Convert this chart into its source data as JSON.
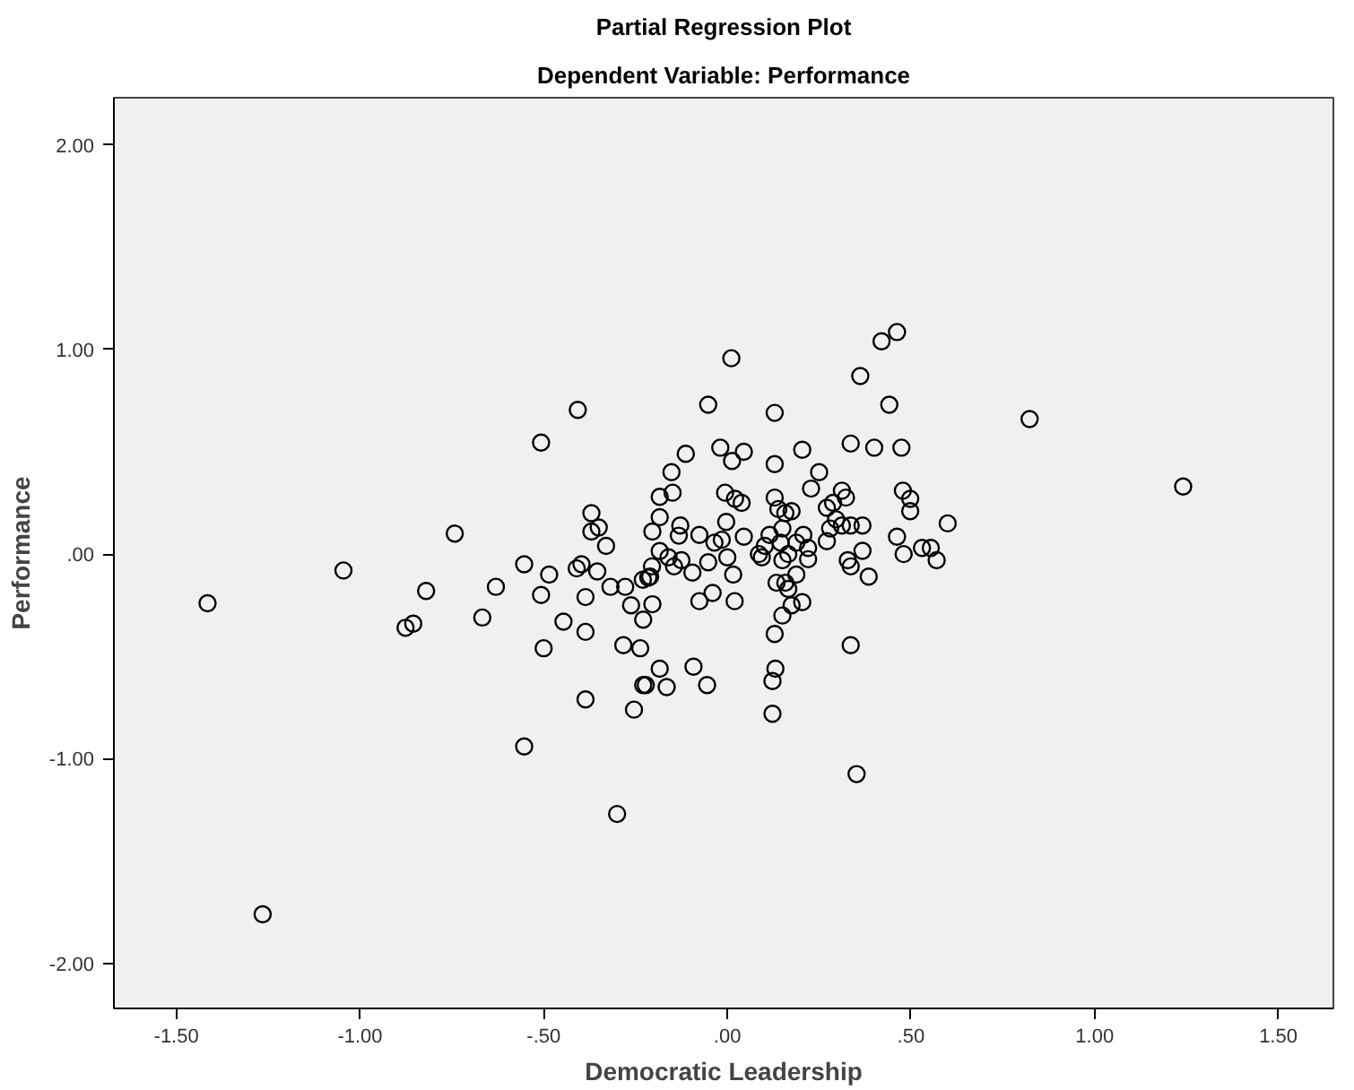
{
  "chart_data": {
    "type": "scatter",
    "title": "Partial Regression Plot",
    "subtitle": "Dependent Variable: Performance",
    "xlabel": "Democratic Leadership",
    "ylabel": "Performance",
    "marker": "circle",
    "grid": false,
    "xlim": [
      -1.67,
      1.65
    ],
    "ylim": [
      -2.22,
      2.23
    ],
    "xticks": [
      {
        "value": -1.5,
        "label": "-1.50"
      },
      {
        "value": -1.0,
        "label": "-1.00"
      },
      {
        "value": -0.5,
        "label": "-.50"
      },
      {
        "value": 0,
        "label": ".00"
      },
      {
        "value": 0.5,
        "label": ".50"
      },
      {
        "value": 1.0,
        "label": "1.00"
      },
      {
        "value": 1.5,
        "label": "1.50"
      }
    ],
    "yticks": [
      {
        "value": 2,
        "label": "2.00"
      },
      {
        "value": 1,
        "label": "1.00"
      },
      {
        "value": 0,
        "label": ".00"
      },
      {
        "value": -1,
        "label": "-1.00"
      },
      {
        "value": -2,
        "label": "-2.00"
      }
    ],
    "series": [
      {
        "color": "#000000",
        "x": [
          -1.415,
          -1.265,
          -1.045,
          -0.82,
          -0.876,
          -0.855,
          -0.667,
          -0.63,
          -0.553,
          -0.507,
          -0.485,
          -0.5,
          -0.446,
          -0.41,
          -0.397,
          -0.354,
          -0.386,
          -0.386,
          -0.386,
          -0.553,
          -0.3,
          -0.254,
          -0.283,
          -0.237,
          -0.229,
          -0.318,
          -0.278,
          -0.262,
          -0.229,
          -0.742,
          -0.507,
          -0.407,
          -0.37,
          -0.37,
          -0.35,
          -0.33,
          -0.23,
          -0.215,
          -0.21,
          -0.204,
          -0.205,
          -0.184,
          -0.184,
          -0.149,
          -0.152,
          -0.113,
          -0.184,
          -0.204,
          -0.128,
          -0.132,
          -0.076,
          -0.16,
          -0.145,
          -0.125,
          -0.095,
          -0.052,
          -0.035,
          -0.015,
          -0.076,
          -0.04,
          0.02,
          0.016,
          0.0,
          -0.003,
          -0.006,
          0.021,
          0.039,
          0.013,
          -0.019,
          0.045,
          -0.052,
          0.011,
          0.045,
          0.086,
          0.102,
          0.115,
          0.094,
          0.129,
          0.129,
          0.129,
          0.139,
          0.158,
          0.175,
          0.15,
          0.145,
          0.188,
          0.166,
          0.15,
          0.207,
          0.22,
          0.22,
          0.204,
          0.228,
          0.25,
          0.134,
          0.158,
          0.188,
          0.166,
          0.175,
          0.15,
          0.204,
          0.129,
          0.271,
          0.288,
          0.312,
          0.323,
          0.296,
          0.312,
          0.336,
          0.368,
          0.28,
          0.271,
          0.328,
          0.336,
          0.368,
          0.385,
          0.336,
          0.4,
          0.474,
          0.441,
          0.362,
          0.42,
          0.462,
          0.478,
          0.498,
          0.498,
          0.462,
          0.48,
          0.53,
          0.336,
          0.823,
          1.241,
          0.6,
          0.57,
          0.554,
          0.352,
          0.123,
          0.123,
          0.131,
          -0.092,
          -0.055,
          -0.184,
          -0.222,
          -0.165
        ],
        "values": [
          -0.24,
          -1.76,
          -0.08,
          -0.18,
          -0.36,
          -0.34,
          -0.31,
          -0.16,
          -0.05,
          -0.2,
          -0.1,
          -0.46,
          -0.33,
          -0.07,
          -0.05,
          -0.085,
          -0.21,
          -0.38,
          -0.71,
          -0.94,
          -1.27,
          -0.76,
          -0.445,
          -0.46,
          -0.64,
          -0.16,
          -0.16,
          -0.25,
          -0.32,
          0.1,
          0.545,
          0.705,
          0.2,
          0.11,
          0.13,
          0.04,
          -0.125,
          -0.115,
          -0.11,
          -0.245,
          -0.06,
          0.015,
          0.28,
          0.3,
          0.4,
          0.49,
          0.18,
          0.11,
          0.14,
          0.09,
          0.094,
          -0.016,
          -0.06,
          -0.03,
          -0.09,
          -0.04,
          0.056,
          0.07,
          -0.23,
          -0.19,
          -0.23,
          -0.1,
          -0.016,
          0.157,
          0.3,
          0.27,
          0.25,
          0.455,
          0.52,
          0.5,
          0.73,
          0.957,
          0.085,
          0.0,
          0.04,
          0.094,
          -0.016,
          0.44,
          0.69,
          0.276,
          0.22,
          0.2,
          0.21,
          0.125,
          0.056,
          0.056,
          0.0,
          -0.03,
          0.094,
          0.03,
          -0.025,
          0.51,
          0.32,
          0.4,
          -0.14,
          -0.14,
          -0.1,
          -0.17,
          -0.25,
          -0.3,
          -0.235,
          -0.39,
          0.226,
          0.25,
          0.31,
          0.276,
          0.17,
          0.14,
          0.14,
          0.14,
          0.125,
          0.063,
          -0.03,
          -0.06,
          0.016,
          -0.11,
          0.54,
          0.52,
          0.52,
          0.73,
          0.87,
          1.04,
          1.085,
          0.31,
          0.27,
          0.21,
          0.085,
          0.0,
          0.03,
          -0.445,
          0.66,
          0.33,
          0.15,
          -0.03,
          0.03,
          -1.075,
          -0.78,
          -0.62,
          -0.56,
          -0.55,
          -0.64,
          -0.56,
          -0.64,
          -0.65
        ]
      }
    ]
  }
}
